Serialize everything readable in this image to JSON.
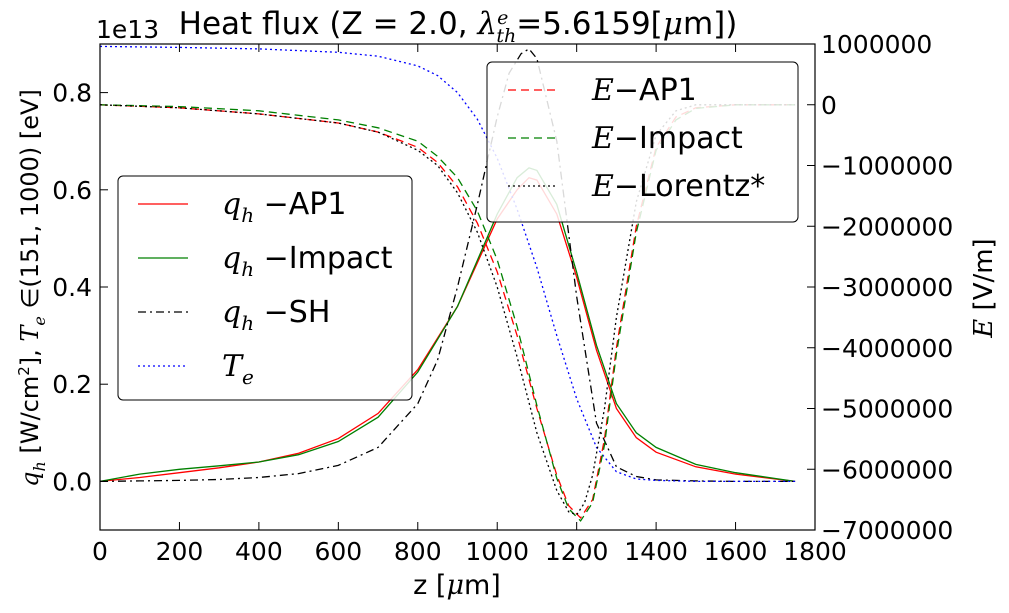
{
  "chart_data": {
    "type": "line",
    "title": "Heat flux (Z = 2.0, λ_th^e=5.6159[μm])",
    "title_parts": {
      "main": "Heat flux (Z = 2.0, ",
      "lambda": "λ",
      "sub": "th",
      "sup": "e",
      "value": "=5.6159[",
      "mu": "μ",
      "unit_tail": "m])"
    },
    "xlabel": "z [μm]",
    "xlabel_parts": {
      "pre": "z [",
      "mu": "μ",
      "post": "m]"
    },
    "ylabel_left": "q_h [W/cm²], T_e ∈(151, 1000) [eV]",
    "ylabel_left_parts": {
      "q": "q",
      "q_sub": "h",
      "a": " [W/cm",
      "sq": "2",
      "b": "], ",
      "t": "T",
      "t_sub": "e",
      "c": " ∈(151, 1000) [eV]"
    },
    "ylabel_right": "E [V/m]",
    "ylabel_right_parts": {
      "e": "E",
      "rest": " [V/m]"
    },
    "offset_text": "1e13",
    "xlim": [
      0,
      1800
    ],
    "ylim_left": [
      -0.1,
      0.9
    ],
    "ylim_right": [
      -7000000,
      1000000
    ],
    "xticks": [
      "0",
      "200",
      "400",
      "600",
      "800",
      "1000",
      "1200",
      "1400",
      "1600",
      "1800"
    ],
    "yticks_left": [
      "0.0",
      "0.2",
      "0.4",
      "0.6",
      "0.8"
    ],
    "yticks_right": [
      "−7000000",
      "−6000000",
      "−5000000",
      "−4000000",
      "−3000000",
      "−2000000",
      "−1000000",
      "0",
      "1000000"
    ],
    "legends": [
      {
        "position": "center-left",
        "entries": [
          {
            "math": "q",
            "sub": "h",
            "text": " −AP1",
            "color": "#ff0000",
            "dash": "solid"
          },
          {
            "math": "q",
            "sub": "h",
            "text": " −Impact",
            "color": "#008000",
            "dash": "solid"
          },
          {
            "math": "q",
            "sub": "h",
            "text": " −SH",
            "color": "#000000",
            "dash": "dashdot"
          },
          {
            "math": "T",
            "sub": "e",
            "text": "",
            "color": "#0000ff",
            "dash": "dotted"
          }
        ]
      },
      {
        "position": "top-right",
        "entries": [
          {
            "math": "E",
            "sub": "",
            "text": "−AP1",
            "color": "#ff0000",
            "dash": "dashed"
          },
          {
            "math": "E",
            "sub": "",
            "text": "−Impact",
            "color": "#008000",
            "dash": "dashed"
          },
          {
            "math": "E",
            "sub": "",
            "text": "−Lorentz*",
            "color": "#000000",
            "dash": "dotted"
          }
        ]
      }
    ],
    "series": [
      {
        "name": "q_h −AP1",
        "axis": "left",
        "color": "#ff0000",
        "dash": "solid",
        "x": [
          0,
          100,
          200,
          300,
          400,
          500,
          600,
          700,
          800,
          900,
          950,
          1000,
          1050,
          1080,
          1100,
          1150,
          1200,
          1250,
          1300,
          1350,
          1400,
          1500,
          1600,
          1700,
          1750
        ],
        "y": [
          0,
          0.008,
          0.018,
          0.028,
          0.04,
          0.058,
          0.088,
          0.14,
          0.23,
          0.36,
          0.45,
          0.54,
          0.6,
          0.625,
          0.62,
          0.55,
          0.42,
          0.27,
          0.15,
          0.09,
          0.06,
          0.03,
          0.015,
          0.005,
          0.0
        ]
      },
      {
        "name": "q_h −Impact",
        "axis": "left",
        "color": "#008000",
        "dash": "solid",
        "x": [
          0,
          100,
          200,
          300,
          400,
          500,
          600,
          700,
          800,
          900,
          950,
          1000,
          1050,
          1080,
          1100,
          1150,
          1200,
          1250,
          1300,
          1350,
          1400,
          1500,
          1600,
          1700,
          1750
        ],
        "y": [
          0,
          0.015,
          0.025,
          0.032,
          0.04,
          0.055,
          0.082,
          0.132,
          0.225,
          0.36,
          0.455,
          0.55,
          0.625,
          0.645,
          0.64,
          0.57,
          0.43,
          0.28,
          0.16,
          0.1,
          0.07,
          0.035,
          0.018,
          0.006,
          0.0
        ]
      },
      {
        "name": "q_h −SH",
        "axis": "left",
        "color": "#000000",
        "dash": "dashdot",
        "x": [
          0,
          100,
          200,
          300,
          400,
          500,
          600,
          700,
          800,
          850,
          900,
          950,
          1000,
          1030,
          1060,
          1080,
          1100,
          1150,
          1200,
          1250,
          1300,
          1350,
          1400,
          1500,
          1600,
          1700,
          1750
        ],
        "y": [
          0,
          0.001,
          0.002,
          0.004,
          0.008,
          0.016,
          0.033,
          0.07,
          0.16,
          0.25,
          0.4,
          0.57,
          0.75,
          0.84,
          0.88,
          0.89,
          0.87,
          0.7,
          0.38,
          0.12,
          0.03,
          0.01,
          0.003,
          0.001,
          0.0,
          0.0,
          0.0
        ]
      },
      {
        "name": "T_e",
        "axis": "left",
        "color": "#0000ff",
        "dash": "dotted",
        "x": [
          0,
          200,
          400,
          600,
          700,
          800,
          850,
          900,
          950,
          1000,
          1050,
          1100,
          1150,
          1200,
          1250,
          1300,
          1350,
          1400,
          1500,
          1600,
          1700,
          1750
        ],
        "y": [
          0.895,
          0.893,
          0.89,
          0.883,
          0.875,
          0.855,
          0.835,
          0.8,
          0.745,
          0.665,
          0.56,
          0.44,
          0.3,
          0.17,
          0.07,
          0.02,
          0.005,
          0.002,
          0.0,
          0.0,
          0.0,
          0.0
        ]
      },
      {
        "name": "E −AP1",
        "axis": "right",
        "color": "#ff0000",
        "dash": "dashed",
        "x": [
          0,
          200,
          400,
          600,
          700,
          800,
          850,
          900,
          950,
          1000,
          1050,
          1100,
          1150,
          1180,
          1210,
          1240,
          1270,
          1300,
          1350,
          1400,
          1450,
          1500,
          1600,
          1700,
          1750
        ],
        "y": [
          0,
          -50000,
          -150000,
          -300000,
          -450000,
          -700000,
          -950000,
          -1350000,
          -1950000,
          -2750000,
          -3800000,
          -5000000,
          -6100000,
          -6600000,
          -6800000,
          -6500000,
          -5500000,
          -4000000,
          -2000000,
          -700000,
          -200000,
          -50000,
          0,
          0,
          0
        ]
      },
      {
        "name": "E −Impact",
        "axis": "right",
        "color": "#008000",
        "dash": "dashed",
        "x": [
          0,
          200,
          400,
          600,
          700,
          800,
          850,
          900,
          950,
          1000,
          1050,
          1100,
          1150,
          1180,
          1210,
          1240,
          1270,
          1300,
          1350,
          1400,
          1450,
          1500,
          1600,
          1700,
          1750
        ],
        "y": [
          0,
          -30000,
          -100000,
          -250000,
          -380000,
          -600000,
          -850000,
          -1200000,
          -1750000,
          -2550000,
          -3650000,
          -4950000,
          -6150000,
          -6650000,
          -6850000,
          -6550000,
          -5600000,
          -4100000,
          -2100000,
          -750000,
          -250000,
          -60000,
          0,
          0,
          0
        ]
      },
      {
        "name": "E −Lorentz*",
        "axis": "right",
        "color": "#000000",
        "dash": "dotted",
        "x": [
          0,
          200,
          400,
          600,
          700,
          800,
          850,
          900,
          950,
          1000,
          1050,
          1100,
          1150,
          1180,
          1200,
          1220,
          1240,
          1270,
          1300,
          1350,
          1400,
          1450,
          1500,
          1600,
          1700,
          1750
        ],
        "y": [
          0,
          -50000,
          -150000,
          -300000,
          -450000,
          -750000,
          -1000000,
          -1450000,
          -2100000,
          -3000000,
          -4150000,
          -5400000,
          -6350000,
          -6700000,
          -6750000,
          -6550000,
          -6100000,
          -5000000,
          -3500000,
          -1600000,
          -500000,
          -100000,
          0,
          0,
          0,
          0
        ]
      }
    ]
  }
}
